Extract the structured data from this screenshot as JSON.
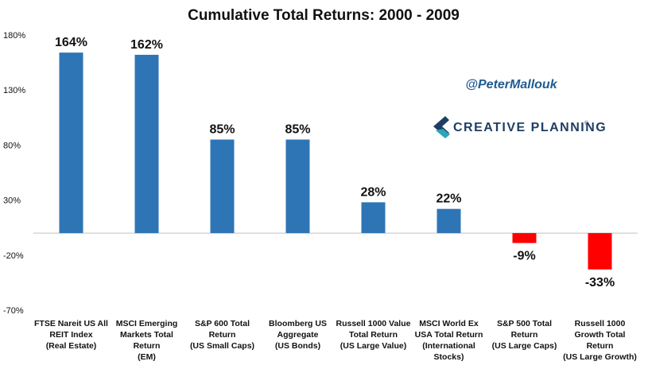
{
  "chart_data": {
    "type": "bar",
    "title": "Cumulative Total Returns: 2000 - 2009",
    "categories": [
      [
        "FTSE Nareit US All",
        "REIT Index",
        "(Real Estate)"
      ],
      [
        "MSCI Emerging",
        "Markets Total",
        "Return",
        "(EM)"
      ],
      [
        "S&P 600 Total",
        "Return",
        "(US Small Caps)"
      ],
      [
        "Bloomberg US",
        "Aggregate",
        "(US Bonds)"
      ],
      [
        "Russell 1000 Value",
        "Total Return",
        "(US Large Value)"
      ],
      [
        "MSCI World Ex",
        "USA Total Return",
        "(International",
        "Stocks)"
      ],
      [
        "S&P 500 Total",
        "Return",
        "(US Large Caps)"
      ],
      [
        "Russell 1000",
        "Growth Total",
        "Return",
        "(US Large Growth)"
      ]
    ],
    "values": [
      164,
      162,
      85,
      85,
      28,
      22,
      -9,
      -33
    ],
    "data_labels": [
      "164%",
      "162%",
      "85%",
      "85%",
      "28%",
      "22%",
      "-9%",
      "-33%"
    ],
    "yticks": [
      -70,
      -20,
      30,
      80,
      130,
      180
    ],
    "ytick_labels": [
      "-70%",
      "-20%",
      "30%",
      "80%",
      "130%",
      "180%"
    ],
    "ylim": [
      -70,
      180
    ],
    "xlabel": "",
    "ylabel": "",
    "grid": false,
    "colors": {
      "positive": "#2e75b6",
      "negative": "#ff0000"
    }
  },
  "annotations": {
    "handle": "@PeterMallouk",
    "brand": "CREATIVE PLANNING",
    "brand_mark": "®",
    "logo_colors": {
      "dark": "#1f3e63",
      "teal": "#2aa6b8"
    }
  }
}
